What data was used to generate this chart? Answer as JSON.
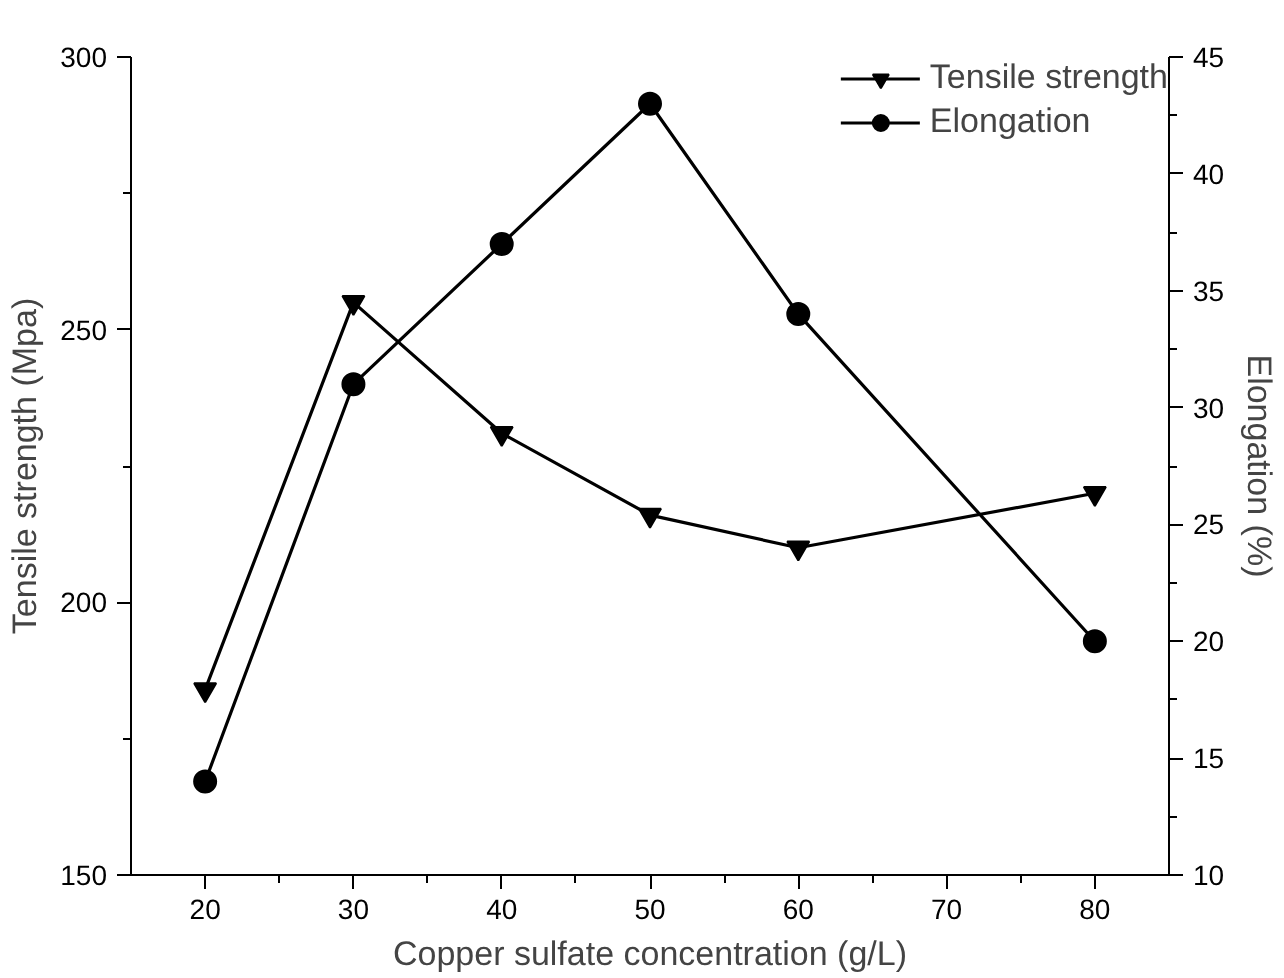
{
  "chart_data": {
    "type": "line",
    "xlabel": "Copper sulfate concentration (g/L)",
    "ylabel": "Tensile strength (Mpa)",
    "y2label": "Elongation (%)",
    "x": [
      20,
      30,
      40,
      50,
      60,
      80
    ],
    "series": [
      {
        "name": "Tensile strength",
        "color": "#000000",
        "marker": "triangle",
        "values": [
          184,
          255,
          231,
          216,
          210,
          220
        ]
      },
      {
        "name": "Elongation",
        "color": "#000000",
        "marker": "circle",
        "axis": "y2",
        "values": [
          14,
          31,
          37,
          43,
          34,
          20
        ]
      }
    ],
    "xlim": [
      15,
      85
    ],
    "xticks": [
      20,
      30,
      40,
      50,
      60,
      70,
      80
    ],
    "ylim": [
      150,
      300
    ],
    "yticks": [
      150,
      200,
      250,
      300
    ],
    "y2lim": [
      10,
      45
    ],
    "y2ticks": [
      10,
      15,
      20,
      25,
      30,
      35,
      40,
      45
    ],
    "grid": false,
    "legend": "top right",
    "line_style": "solid"
  }
}
